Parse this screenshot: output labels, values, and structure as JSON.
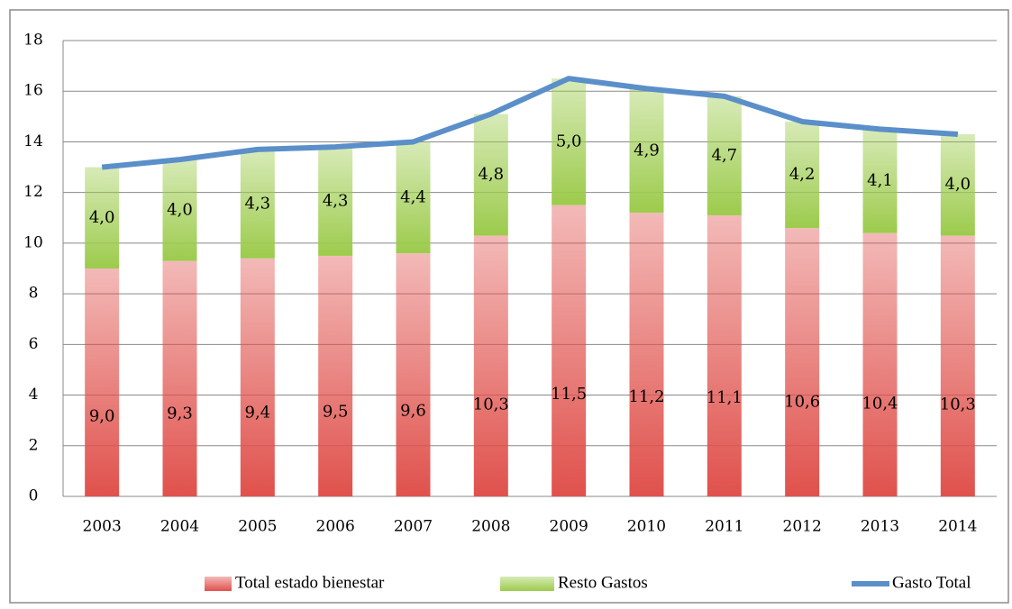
{
  "chart_data": {
    "type": "bar",
    "stacked": true,
    "categories": [
      "2003",
      "2004",
      "2005",
      "2006",
      "2007",
      "2008",
      "2009",
      "2010",
      "2011",
      "2012",
      "2013",
      "2014"
    ],
    "series": [
      {
        "name": "Total estado bienestar",
        "type": "bar",
        "color": "#e0514c",
        "values": [
          9.0,
          9.3,
          9.4,
          9.5,
          9.6,
          10.3,
          11.5,
          11.2,
          11.1,
          10.6,
          10.4,
          10.3
        ],
        "value_labels": [
          "9,0",
          "9,3",
          "9,4",
          "9,5",
          "9,6",
          "10,3",
          "11,5",
          "11,2",
          "11,1",
          "10,6",
          "10,4",
          "10,3"
        ]
      },
      {
        "name": "Resto Gastos",
        "type": "bar",
        "color": "#9ccb4c",
        "values": [
          4.0,
          4.0,
          4.3,
          4.3,
          4.4,
          4.8,
          5.0,
          4.9,
          4.7,
          4.2,
          4.1,
          4.0
        ],
        "value_labels": [
          "4,0",
          "4,0",
          "4,3",
          "4,3",
          "4,4",
          "4,8",
          "5,0",
          "4,9",
          "4,7",
          "4,2",
          "4,1",
          "4,0"
        ]
      },
      {
        "name": "Gasto Total",
        "type": "line",
        "color": "#5b8fc9",
        "values": [
          13.0,
          13.3,
          13.7,
          13.8,
          14.0,
          15.1,
          16.5,
          16.1,
          15.8,
          14.8,
          14.5,
          14.3
        ]
      }
    ],
    "ylim": [
      0,
      18
    ],
    "yticks": [
      0,
      2,
      4,
      6,
      8,
      10,
      12,
      14,
      16,
      18
    ],
    "grid": true,
    "legend": "bottom"
  }
}
